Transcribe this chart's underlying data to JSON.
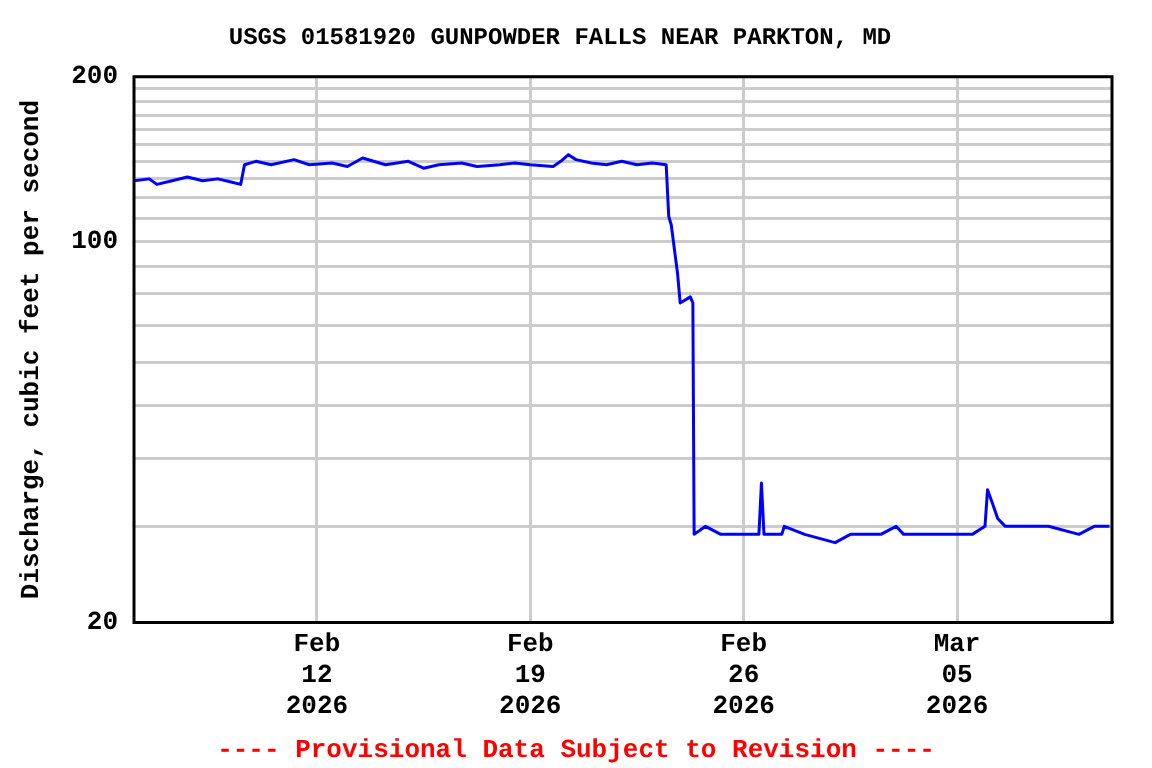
{
  "chart_data": {
    "type": "line",
    "title": "USGS 01581920 GUNPOWDER FALLS NEAR PARKTON, MD",
    "ylabel": "Discharge, cubic feet per second",
    "annotations": [
      "---- Provisional Data Subject to Revision ----"
    ],
    "log": true,
    "grid": true,
    "legend": false,
    "marker": "none",
    "line_style": "solid",
    "xlim": [
      "2026-02-06T00:00",
      "2026-03-10T02:00"
    ],
    "xticks": [
      {
        "value": "2026-02-12",
        "label": "Feb\n12\n2026"
      },
      {
        "value": "2026-02-19",
        "label": "Feb\n19\n2026"
      },
      {
        "value": "2026-02-26",
        "label": "Feb\n26\n2026"
      },
      {
        "value": "2026-03-05",
        "label": "Mar\n05\n2026"
      }
    ],
    "ylim": [
      20,
      200
    ],
    "yticks": [
      20,
      {
        "value": 30,
        "label": null
      },
      {
        "value": 40,
        "label": null
      },
      {
        "value": 50,
        "label": null
      },
      {
        "value": 60,
        "label": null
      },
      {
        "value": 70,
        "label": null
      },
      {
        "value": 80,
        "label": null
      },
      {
        "value": 90,
        "label": null
      },
      100,
      {
        "value": 110,
        "label": null
      },
      {
        "value": 120,
        "label": null
      },
      {
        "value": 130,
        "label": null
      },
      {
        "value": 140,
        "label": null
      },
      {
        "value": 150,
        "label": null
      },
      {
        "value": 160,
        "label": null
      },
      {
        "value": 170,
        "label": null
      },
      {
        "value": 180,
        "label": null
      },
      {
        "value": 190,
        "label": null
      },
      200
    ],
    "x": [
      "2026-02-06T00:00",
      "2026-02-06T12:00",
      "2026-02-06T18:00",
      "2026-02-07T06:00",
      "2026-02-07T18:00",
      "2026-02-08T06:00",
      "2026-02-08T18:00",
      "2026-02-09T06:00",
      "2026-02-09T12:00",
      "2026-02-09T15:00",
      "2026-02-10T00:00",
      "2026-02-10T12:00",
      "2026-02-11T06:00",
      "2026-02-11T18:00",
      "2026-02-12T12:00",
      "2026-02-13T00:00",
      "2026-02-13T12:00",
      "2026-02-14T06:00",
      "2026-02-15T00:00",
      "2026-02-15T12:00",
      "2026-02-16T00:00",
      "2026-02-16T18:00",
      "2026-02-17T06:00",
      "2026-02-18T00:00",
      "2026-02-18T12:00",
      "2026-02-19T00:00",
      "2026-02-19T18:00",
      "2026-02-20T00:00",
      "2026-02-20T06:00",
      "2026-02-20T12:00",
      "2026-02-21T00:00",
      "2026-02-21T12:00",
      "2026-02-22T00:00",
      "2026-02-22T12:00",
      "2026-02-23T00:00",
      "2026-02-23T11:00",
      "2026-02-23T13:00",
      "2026-02-23T15:00",
      "2026-02-23T20:00",
      "2026-02-23T22:00",
      "2026-02-24T06:00",
      "2026-02-24T08:00",
      "2026-02-24T09:00",
      "2026-02-24T18:00",
      "2026-02-25T06:00",
      "2026-02-26T12:00",
      "2026-02-26T14:00",
      "2026-02-26T16:00",
      "2026-02-27T06:00",
      "2026-02-27T08:00",
      "2026-02-28T00:00",
      "2026-03-01T00:00",
      "2026-03-01T12:00",
      "2026-03-02T12:00",
      "2026-03-03T00:00",
      "2026-03-03T06:00",
      "2026-03-05T12:00",
      "2026-03-05T22:00",
      "2026-03-06T00:00",
      "2026-03-06T04:00",
      "2026-03-06T08:00",
      "2026-03-06T14:00",
      "2026-03-07T00:00",
      "2026-03-08T00:00",
      "2026-03-09T00:00",
      "2026-03-09T12:00",
      "2026-03-10T00:00"
    ],
    "series": [
      {
        "color": "#0000ff",
        "values": [
          129,
          130,
          127,
          129,
          131,
          129,
          130,
          128,
          127,
          138,
          140,
          138,
          141,
          138,
          139,
          137,
          142,
          138,
          140,
          136,
          138,
          139,
          137,
          138,
          139,
          138,
          137,
          140,
          144,
          141,
          139,
          138,
          140,
          138,
          139,
          138,
          111,
          107,
          87,
          77,
          79,
          77,
          29,
          30,
          29,
          29,
          36,
          29,
          29,
          30,
          29,
          28,
          29,
          29,
          30,
          29,
          29,
          30,
          35,
          33,
          31,
          30,
          30,
          30,
          29,
          30,
          30
        ]
      }
    ]
  }
}
